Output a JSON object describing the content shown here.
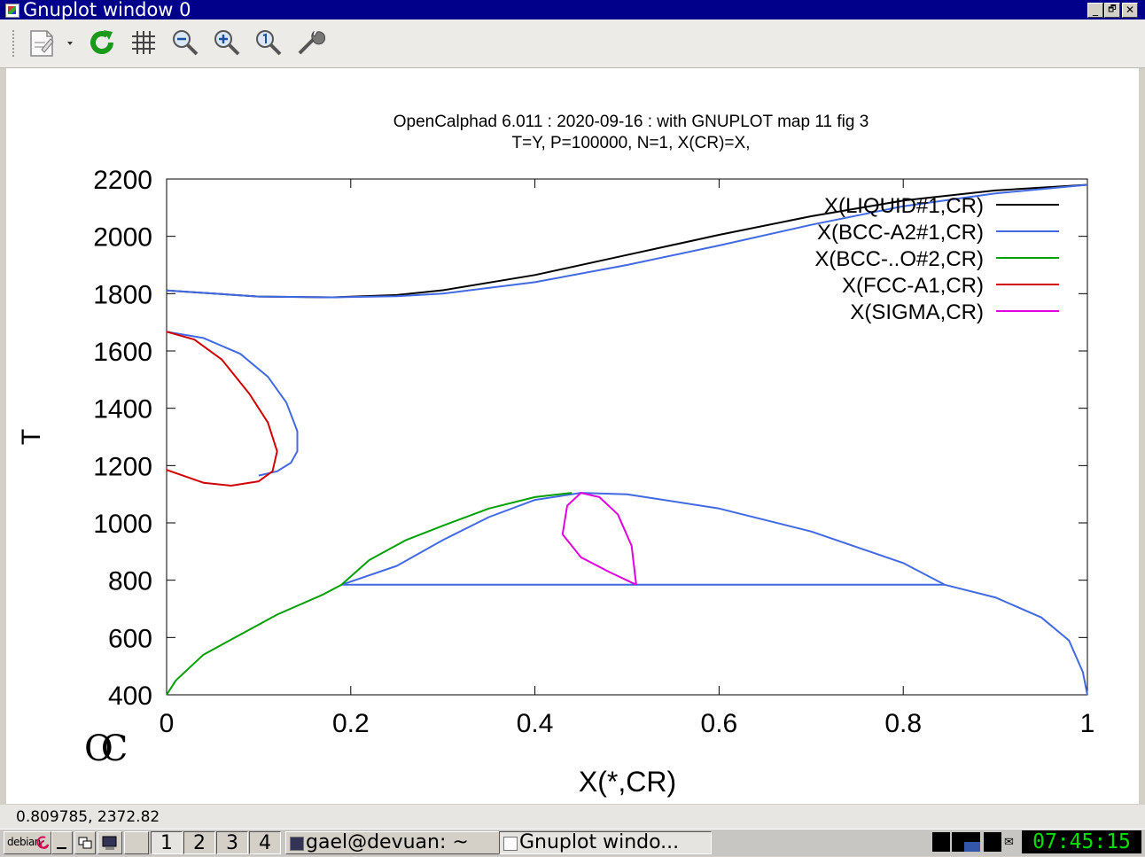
{
  "window": {
    "title": "Gnuplot window 0",
    "controls": {
      "minimize": "_",
      "restore": "🗗",
      "close": "✕"
    }
  },
  "toolbar": {
    "items": [
      {
        "name": "export-icon",
        "tooltip": ""
      },
      {
        "name": "replot-icon"
      },
      {
        "name": "grid-icon"
      },
      {
        "name": "zoom-out-icon"
      },
      {
        "name": "zoom-in-icon"
      },
      {
        "name": "unzoom-icon"
      },
      {
        "name": "settings-icon"
      }
    ]
  },
  "plot": {
    "title_line1": "OpenCalphad   6.011 :  2020-09-16 : with GNUPLOT map 11 fig 3",
    "title_line2": "T=Y,  P=100000, N=1, X(CR)=X,",
    "logo": "OC",
    "xlabel": "X(*,CR)",
    "ylabel": "T"
  },
  "chart_data": {
    "type": "line",
    "title": "OpenCalphad   6.011 :  2020-09-16 : with GNUPLOT map 11 fig 3",
    "subtitle": "T=Y,  P=100000, N=1, X(CR)=X,",
    "xlabel": "X(*,CR)",
    "ylabel": "T",
    "xlim": [
      0,
      1
    ],
    "ylim": [
      400,
      2200
    ],
    "xticks": [
      0,
      0.2,
      0.4,
      0.6,
      0.8,
      1
    ],
    "xtick_labels": [
      "0",
      "0.2",
      "0.4",
      "0.6",
      "0.8",
      "1"
    ],
    "yticks": [
      400,
      600,
      800,
      1000,
      1200,
      1400,
      1600,
      1800,
      2000,
      2200
    ],
    "ytick_labels": [
      "400",
      "600",
      "800",
      "1000",
      "1200",
      "1400",
      "1600",
      "1800",
      "2000",
      "2200"
    ],
    "grid": false,
    "legend_position": "top-right",
    "series": [
      {
        "name": "X(LIQUID#1,CR)",
        "color": "#000000",
        "segments": [
          [
            [
              0,
              1811
            ],
            [
              0.1,
              1790
            ],
            [
              0.18,
              1787
            ],
            [
              0.25,
              1795
            ],
            [
              0.3,
              1812
            ],
            [
              0.4,
              1865
            ],
            [
              0.5,
              1935
            ],
            [
              0.6,
              2005
            ],
            [
              0.7,
              2070
            ],
            [
              0.8,
              2125
            ],
            [
              0.9,
              2160
            ],
            [
              1,
              2180
            ]
          ]
        ]
      },
      {
        "name": "X(BCC-A2#1,CR)",
        "color": "#4169e1",
        "segments": [
          [
            [
              0,
              1811
            ],
            [
              0.1,
              1790
            ],
            [
              0.18,
              1787
            ],
            [
              0.25,
              1791
            ],
            [
              0.3,
              1800
            ],
            [
              0.4,
              1840
            ],
            [
              0.5,
              1900
            ],
            [
              0.6,
              1968
            ],
            [
              0.7,
              2040
            ],
            [
              0.8,
              2105
            ],
            [
              0.9,
              2150
            ],
            [
              1,
              2180
            ]
          ],
          [
            [
              0,
              1667
            ],
            [
              0.04,
              1645
            ],
            [
              0.08,
              1590
            ],
            [
              0.11,
              1510
            ],
            [
              0.13,
              1420
            ],
            [
              0.142,
              1320
            ],
            [
              0.142,
              1250
            ],
            [
              0.135,
              1210
            ],
            [
              0.12,
              1180
            ],
            [
              0.1,
              1165
            ]
          ],
          [
            [
              0.19,
              784
            ],
            [
              0.25,
              850
            ],
            [
              0.3,
              940
            ],
            [
              0.35,
              1020
            ],
            [
              0.4,
              1080
            ],
            [
              0.45,
              1105
            ],
            [
              0.5,
              1100
            ],
            [
              0.6,
              1050
            ],
            [
              0.7,
              970
            ],
            [
              0.8,
              860
            ],
            [
              0.845,
              784
            ]
          ],
          [
            [
              0.19,
              784
            ],
            [
              0.845,
              784
            ]
          ],
          [
            [
              0.845,
              784
            ],
            [
              0.9,
              740
            ],
            [
              0.95,
              670
            ],
            [
              0.98,
              590
            ],
            [
              0.995,
              480
            ],
            [
              1,
              400
            ]
          ]
        ]
      },
      {
        "name": "X(BCC-..O#2,CR)",
        "color": "#00a000",
        "segments": [
          [
            [
              0,
              400
            ],
            [
              0.01,
              450
            ],
            [
              0.04,
              540
            ],
            [
              0.08,
              610
            ],
            [
              0.12,
              680
            ],
            [
              0.17,
              750
            ],
            [
              0.19,
              784
            ]
          ],
          [
            [
              0.19,
              784
            ],
            [
              0.22,
              870
            ],
            [
              0.26,
              940
            ],
            [
              0.3,
              990
            ],
            [
              0.35,
              1050
            ],
            [
              0.4,
              1090
            ],
            [
              0.44,
              1105
            ]
          ]
        ]
      },
      {
        "name": "X(FCC-A1,CR)",
        "color": "#d00000",
        "segments": [
          [
            [
              0,
              1667
            ],
            [
              0.03,
              1640
            ],
            [
              0.06,
              1570
            ],
            [
              0.09,
              1450
            ],
            [
              0.11,
              1350
            ],
            [
              0.12,
              1250
            ],
            [
              0.115,
              1180
            ],
            [
              0.1,
              1145
            ],
            [
              0.07,
              1130
            ],
            [
              0.04,
              1140
            ],
            [
              0,
              1185
            ]
          ]
        ]
      },
      {
        "name": "X(SIGMA,CR)",
        "color": "#e000e0",
        "segments": [
          [
            [
              0.51,
              784
            ],
            [
              0.48,
              830
            ],
            [
              0.45,
              880
            ],
            [
              0.43,
              960
            ],
            [
              0.435,
              1060
            ],
            [
              0.45,
              1105
            ],
            [
              0.47,
              1090
            ],
            [
              0.49,
              1030
            ],
            [
              0.505,
              920
            ],
            [
              0.51,
              784
            ]
          ]
        ]
      }
    ]
  },
  "status": {
    "coords": "0.809785,  2372.82"
  },
  "taskbar": {
    "desktops": [
      "1",
      "2",
      "3",
      "4"
    ],
    "tasks": [
      {
        "label": "gael@devuan: ~",
        "active": false
      },
      {
        "label": "Gnuplot windo...",
        "active": true
      }
    ],
    "clock": "07:45:15",
    "debian_label": "debian"
  }
}
